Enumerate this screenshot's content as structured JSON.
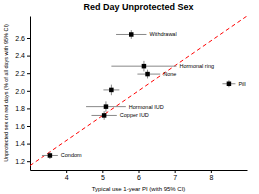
{
  "chart_data": {
    "type": "scatter",
    "title": "Red Day Unprotected Sex",
    "x_label": "Typical use 1-year PI (with 95% CI)",
    "y_label": "Unprotected sex on red days (% of all days with 95% CI)",
    "xlim": [
      3.0,
      9.0
    ],
    "ylim": [
      1.1,
      2.85
    ],
    "xticks": [
      4,
      5,
      6,
      7,
      8
    ],
    "yticks": [
      1.2,
      1.4,
      1.6,
      1.8,
      {
        "value": 2.0,
        "label": "2.0"
      },
      2.2,
      2.4,
      2.6
    ],
    "x": [
      3.55,
      5.05,
      5.1,
      5.25,
      5.8,
      6.15,
      6.25,
      8.5
    ],
    "values": [
      1.265,
      1.72,
      1.82,
      2.01,
      2.64,
      2.28,
      2.19,
      2.08
    ],
    "color": "black",
    "marker": "square",
    "error_bars": {
      "color": "#888888",
      "x_low": [
        0.22,
        0.35,
        0.55,
        0.22,
        0.42,
        0.9,
        0.28,
        0.18
      ],
      "x_high": [
        0.22,
        0.35,
        0.55,
        0.22,
        0.42,
        0.9,
        0.35,
        0.18
      ],
      "y_low": [
        0.04,
        0.05,
        0.06,
        0.06,
        0.05,
        0.06,
        0.05,
        0.04
      ],
      "y_high": [
        0.04,
        0.05,
        0.06,
        0.06,
        0.05,
        0.06,
        0.05,
        0.04
      ]
    },
    "annotations": [
      {
        "text": "Condom",
        "x": 3.55,
        "y": 1.265
      },
      {
        "text": "Copper IUD",
        "x": 5.05,
        "y": 1.72
      },
      {
        "text": "Hormonal IUD",
        "x": 5.1,
        "y": 1.82
      },
      {
        "text": "Withdrawal",
        "x": 5.8,
        "y": 2.64
      },
      {
        "text": "Hormonal ring",
        "x": 6.15,
        "y": 2.28
      },
      {
        "text": "None",
        "x": 6.25,
        "y": 2.19
      },
      {
        "text": "Pill",
        "x": 8.5,
        "y": 2.08
      }
    ],
    "reference_line": {
      "x": [
        3.0,
        9.0
      ],
      "y": [
        1.15,
        2.85
      ],
      "color": "red",
      "line_style": "dashed"
    },
    "grid": false
  }
}
